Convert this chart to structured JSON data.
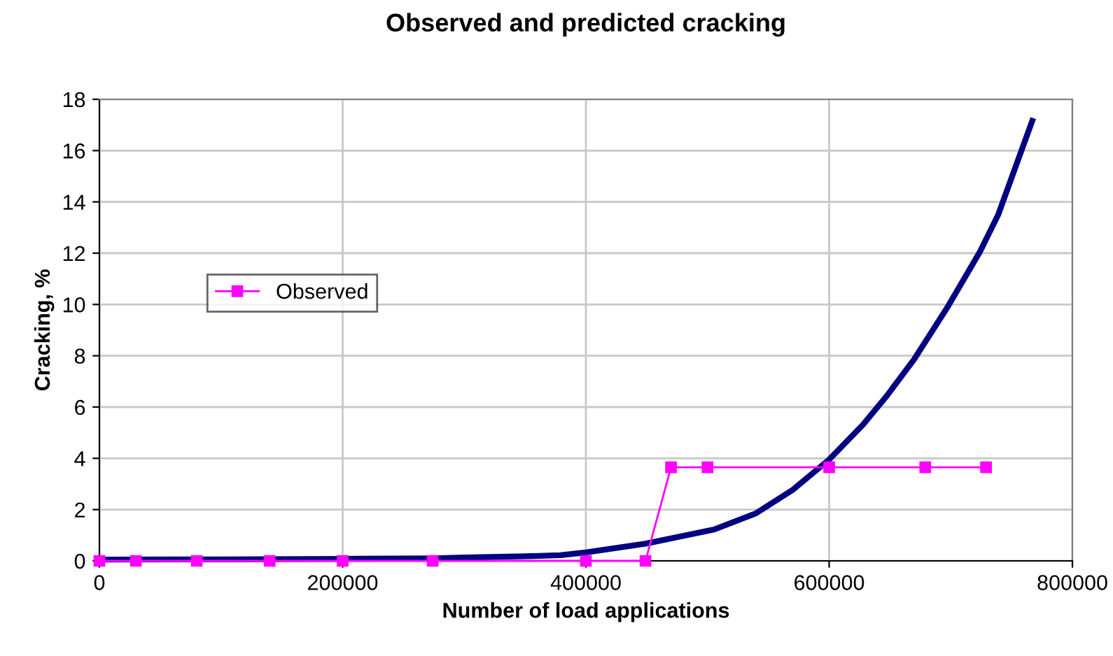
{
  "chart_data": {
    "type": "line",
    "title": "Observed and predicted cracking",
    "xlabel": "Number of load applications",
    "ylabel": "Cracking, %",
    "xlim": [
      0,
      800000
    ],
    "xticks": [
      0,
      200000,
      400000,
      600000,
      800000
    ],
    "ylim": [
      0,
      18
    ],
    "yticks": [
      0,
      2,
      4,
      6,
      8,
      10,
      12,
      14,
      16,
      18
    ],
    "grid": true,
    "legend": "left",
    "series": [
      {
        "color": "#000080",
        "marker": "none",
        "x": [
          0,
          100000,
          200000,
          274000,
          300000,
          350000,
          379000,
          400000,
          449000,
          505000,
          540000,
          570000,
          600000,
          628000,
          647000,
          670000,
          697000,
          724000,
          739000,
          767000
        ],
        "values": [
          0.05,
          0.06,
          0.08,
          0.1,
          0.13,
          0.18,
          0.22,
          0.33,
          0.67,
          1.22,
          1.86,
          2.77,
          3.95,
          5.32,
          6.41,
          7.87,
          9.87,
          12.06,
          13.5,
          17.16
        ]
      },
      {
        "name": "Observed",
        "color": "#ff00ff",
        "marker": "square",
        "x": [
          0,
          30000,
          80000,
          140000,
          200000,
          274000,
          400000,
          449000,
          470000,
          500000,
          600000,
          679000,
          729000
        ],
        "values": [
          0,
          0,
          0,
          0,
          0,
          0,
          0,
          0,
          3.65,
          3.65,
          3.65,
          3.65,
          3.65
        ]
      }
    ]
  }
}
